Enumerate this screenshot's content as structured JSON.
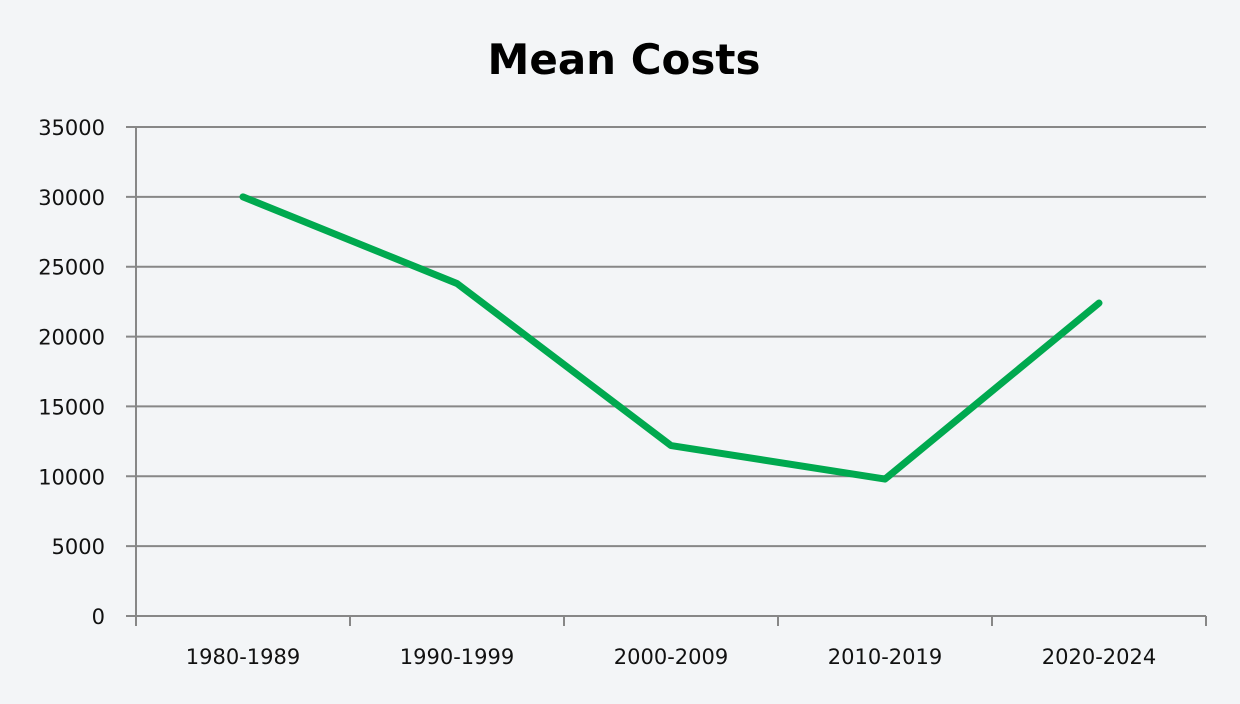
{
  "chart_data": {
    "type": "line",
    "title": "Mean Costs",
    "xlabel": "",
    "ylabel": "",
    "categories": [
      "1980-1989",
      "1990-1999",
      "2000-2009",
      "2010-2019",
      "2020-2024"
    ],
    "series": [
      {
        "name": "Mean Costs",
        "values": [
          30000,
          23800,
          12200,
          9800,
          22400
        ],
        "color": "#00a94f"
      }
    ],
    "ylim": [
      0,
      35000
    ],
    "yticks": [
      0,
      5000,
      10000,
      15000,
      20000,
      25000,
      30000,
      35000
    ],
    "ytick_labels": [
      "0",
      "5000",
      "10000",
      "15000",
      "20000",
      "25000",
      "30000",
      "35000"
    ],
    "grid": true,
    "legend": "none",
    "colors": {
      "background": "#f3f5f7",
      "grid": "#878787",
      "line": "#00a94f"
    }
  }
}
